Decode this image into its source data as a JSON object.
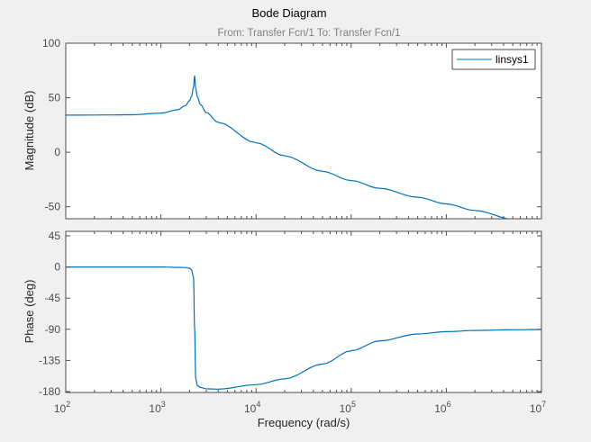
{
  "chart_data": [
    {
      "type": "line",
      "title": "Bode Diagram",
      "subtitle": "From: Transfer Fcn/1  To: Transfer Fcn/1",
      "panel": "magnitude",
      "ylabel": "Magnitude (dB)",
      "xscale": "log",
      "xlim": [
        100,
        10000000
      ],
      "ylim": [
        -61,
        100
      ],
      "yticks": [
        100,
        50,
        0,
        -50
      ],
      "legend": {
        "entries": [
          "linsys1"
        ],
        "placement": "top-right"
      },
      "color": "#0072bd",
      "series": [
        {
          "name": "linsys1",
          "x": [
            100,
            300,
            500,
            1000,
            1500,
            1800,
            2000,
            2100,
            2200,
            2260,
            2320,
            2420,
            2600,
            3000,
            4000,
            10000,
            20000,
            50000,
            100000,
            200000,
            500000,
            1000000,
            2000000,
            5000000,
            10000000
          ],
          "y": [
            34.0,
            34.2,
            34.4,
            35.9,
            39.0,
            42.7,
            47.3,
            51.3,
            59.6,
            70.0,
            59.0,
            50.7,
            43.8,
            36.4,
            27.4,
            8.7,
            -3.3,
            -17.5,
            -26.0,
            -33.1,
            -41.3,
            -47.4,
            -53.4,
            -61.4,
            -67.4
          ]
        }
      ]
    },
    {
      "type": "line",
      "panel": "phase",
      "xlabel": "Frequency  (rad/s)",
      "ylabel": "Phase (deg)",
      "xscale": "log",
      "xlim": [
        100,
        10000000
      ],
      "xticks": [
        {
          "base": "10",
          "exp": "2"
        },
        {
          "base": "10",
          "exp": "3"
        },
        {
          "base": "10",
          "exp": "4"
        },
        {
          "base": "10",
          "exp": "5"
        },
        {
          "base": "10",
          "exp": "6"
        },
        {
          "base": "10",
          "exp": "7"
        }
      ],
      "ylim": [
        -181.3,
        51.5
      ],
      "yticks": [
        45,
        0,
        -45,
        -90,
        -135,
        -180
      ],
      "color": "#0072bd",
      "series": [
        {
          "name": "linsys1",
          "x": [
            100,
            300,
            500,
            1000,
            1500,
            1800,
            2000,
            2100,
            2200,
            2260,
            2320,
            2420,
            2600,
            3000,
            4000,
            10000,
            20000,
            50000,
            100000,
            200000,
            500000,
            1000000,
            2000000,
            5000000,
            10000000
          ],
          "y": [
            0,
            0,
            0,
            0,
            -0.5,
            -0.8,
            -1.8,
            -4.2,
            -14.5,
            -87.8,
            -160.8,
            -171.3,
            -174,
            -176,
            -176.5,
            -170,
            -161.6,
            -140.2,
            -121,
            -106.7,
            -96.8,
            -93.4,
            -91.7,
            -90.7,
            -90.3
          ]
        }
      ]
    }
  ]
}
